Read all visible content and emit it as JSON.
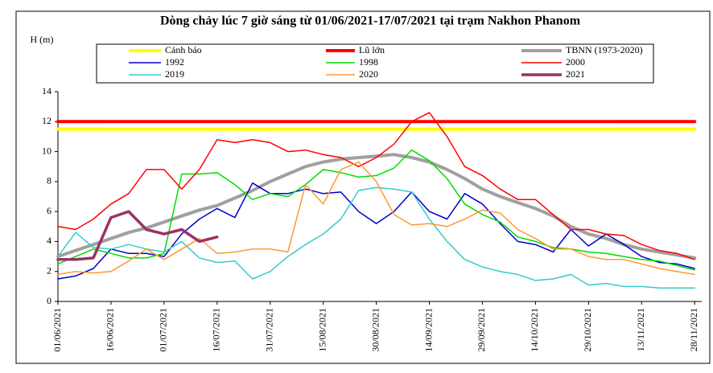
{
  "chart_data": {
    "type": "line",
    "title": "Dòng chảy lúc 7 giờ sáng từ 01/06/2021-17/07/2021 tại trạm Nakhon Phanom",
    "y_label": "H (m)",
    "x": [
      "01/06/2021",
      "06/06/2021",
      "11/06/2021",
      "16/06/2021",
      "21/06/2021",
      "26/06/2021",
      "01/07/2021",
      "06/07/2021",
      "11/07/2021",
      "16/07/2021",
      "21/07/2021",
      "26/07/2021",
      "31/07/2021",
      "05/08/2021",
      "10/08/2021",
      "15/08/2021",
      "20/08/2021",
      "25/08/2021",
      "30/08/2021",
      "04/09/2021",
      "09/09/2021",
      "14/09/2021",
      "19/09/2021",
      "24/09/2021",
      "29/09/2021",
      "04/10/2021",
      "09/10/2021",
      "14/10/2021",
      "19/10/2021",
      "24/10/2021",
      "29/10/2021",
      "03/11/2021",
      "08/11/2021",
      "13/11/2021",
      "18/11/2021",
      "23/11/2021",
      "28/11/2021"
    ],
    "xlim": [
      "01/06/2021",
      "30/11/2021"
    ],
    "xticks": [
      "01/06/2021",
      "16/06/2021",
      "01/07/2021",
      "16/07/2021",
      "31/07/2021",
      "15/08/2021",
      "30/08/2021",
      "14/09/2021",
      "29/09/2021",
      "14/10/2021",
      "29/10/2021",
      "13/11/2021",
      "28/11/2021"
    ],
    "ylim": [
      0,
      14
    ],
    "yticks": [
      0,
      2,
      4,
      6,
      8,
      10,
      12,
      14
    ],
    "grid": false,
    "legend": "top",
    "series": [
      {
        "name": "Cảnh báo",
        "color": "#ffff00",
        "width": 4,
        "values": [
          11.5,
          11.5,
          11.5,
          11.5,
          11.5,
          11.5,
          11.5,
          11.5,
          11.5,
          11.5,
          11.5,
          11.5,
          11.5,
          11.5,
          11.5,
          11.5,
          11.5,
          11.5,
          11.5,
          11.5,
          11.5,
          11.5,
          11.5,
          11.5,
          11.5,
          11.5,
          11.5,
          11.5,
          11.5,
          11.5,
          11.5,
          11.5,
          11.5,
          11.5,
          11.5,
          11.5,
          11.5
        ]
      },
      {
        "name": "Lũ lớn",
        "color": "#ff0000",
        "width": 4,
        "values": [
          12,
          12,
          12,
          12,
          12,
          12,
          12,
          12,
          12,
          12,
          12,
          12,
          12,
          12,
          12,
          12,
          12,
          12,
          12,
          12,
          12,
          12,
          12,
          12,
          12,
          12,
          12,
          12,
          12,
          12,
          12,
          12,
          12,
          12,
          12,
          12,
          12
        ]
      },
      {
        "name": "TBNN (1973-2020)",
        "color": "#a0a0a0",
        "width": 4,
        "values": [
          3.0,
          3.4,
          3.8,
          4.2,
          4.6,
          4.9,
          5.3,
          5.7,
          6.1,
          6.4,
          6.9,
          7.4,
          8.0,
          8.5,
          9.0,
          9.3,
          9.5,
          9.6,
          9.7,
          9.8,
          9.6,
          9.3,
          8.8,
          8.2,
          7.5,
          7.0,
          6.6,
          6.2,
          5.7,
          5.0,
          4.5,
          4.2,
          3.8,
          3.5,
          3.3,
          3.1,
          2.9
        ]
      },
      {
        "name": "1992",
        "color": "#0000cc",
        "width": 1.5,
        "values": [
          1.5,
          1.7,
          2.2,
          3.5,
          3.2,
          3.2,
          3.0,
          4.5,
          5.5,
          6.2,
          5.6,
          7.9,
          7.2,
          7.2,
          7.5,
          7.2,
          7.3,
          6.0,
          5.2,
          6.0,
          7.3,
          6.0,
          5.5,
          7.2,
          6.5,
          5.2,
          4.0,
          3.8,
          3.3,
          4.8,
          3.7,
          4.5,
          3.8,
          3.0,
          2.6,
          2.5,
          2.2
        ]
      },
      {
        "name": "1998",
        "color": "#00dd00",
        "width": 1.5,
        "values": [
          2.5,
          3.0,
          3.5,
          3.2,
          2.9,
          2.9,
          3.2,
          8.5,
          8.5,
          8.6,
          7.8,
          6.8,
          7.2,
          7.0,
          7.8,
          8.8,
          8.6,
          8.3,
          8.4,
          8.9,
          10.1,
          9.4,
          8.2,
          6.5,
          5.8,
          5.3,
          4.3,
          4.0,
          3.6,
          3.5,
          3.3,
          3.2,
          3.0,
          2.8,
          2.7,
          2.4,
          2.1
        ]
      },
      {
        "name": "2000",
        "color": "#ff0000",
        "width": 1.5,
        "values": [
          5.0,
          4.8,
          5.5,
          6.5,
          7.2,
          8.8,
          8.8,
          7.5,
          8.8,
          10.8,
          10.6,
          10.8,
          10.6,
          10.0,
          10.1,
          9.8,
          9.6,
          9.0,
          9.6,
          10.5,
          12.0,
          12.6,
          11.0,
          9.0,
          8.4,
          7.5,
          6.8,
          6.8,
          5.8,
          4.8,
          4.8,
          4.5,
          4.4,
          3.8,
          3.4,
          3.2,
          2.8
        ]
      },
      {
        "name": "2019",
        "color": "#33cccc",
        "width": 1.5,
        "values": [
          3.0,
          4.6,
          3.6,
          3.5,
          3.8,
          3.5,
          3.3,
          4.0,
          2.9,
          2.6,
          2.7,
          1.5,
          2.0,
          3.0,
          3.8,
          4.5,
          5.5,
          7.4,
          7.6,
          7.5,
          7.3,
          5.5,
          4.0,
          2.8,
          2.3,
          2.0,
          1.8,
          1.4,
          1.5,
          1.8,
          1.1,
          1.2,
          1.0,
          1.0,
          0.9,
          0.9,
          0.9
        ]
      },
      {
        "name": "2020",
        "color": "#ff9933",
        "width": 1.5,
        "values": [
          1.8,
          2.0,
          1.9,
          2.0,
          2.7,
          3.5,
          2.8,
          3.5,
          4.2,
          3.2,
          3.3,
          3.5,
          3.5,
          3.3,
          7.8,
          6.5,
          8.8,
          9.3,
          8.0,
          5.8,
          5.1,
          5.2,
          5.0,
          5.5,
          6.1,
          5.9,
          4.8,
          4.2,
          3.5,
          3.5,
          3.0,
          2.8,
          2.8,
          2.5,
          2.2,
          2.0,
          1.8
        ]
      },
      {
        "name": "2021",
        "color": "#993366",
        "width": 3.5,
        "values": [
          2.8,
          2.8,
          2.9,
          5.6,
          6.0,
          4.8,
          4.5,
          4.8,
          4.0,
          4.3,
          null,
          null,
          null,
          null,
          null,
          null,
          null,
          null,
          null,
          null,
          null,
          null,
          null,
          null,
          null,
          null,
          null,
          null,
          null,
          null,
          null,
          null,
          null,
          null,
          null,
          null,
          null
        ]
      }
    ]
  }
}
